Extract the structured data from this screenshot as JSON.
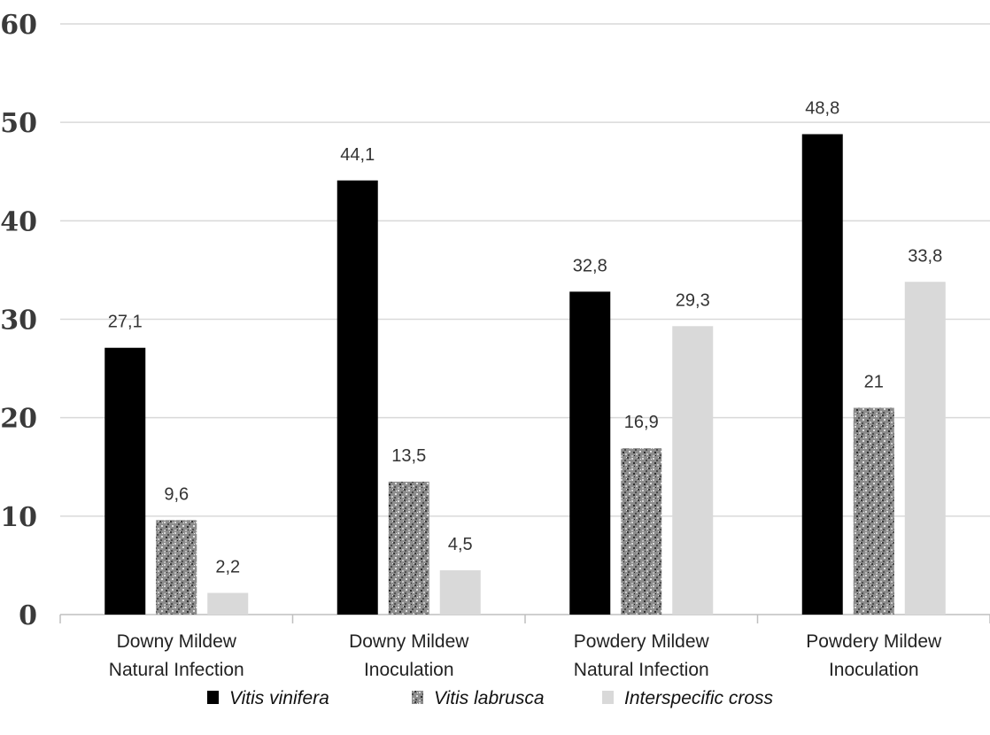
{
  "chart_data": {
    "type": "bar",
    "categories": [
      [
        "Downy Mildew",
        "Natural Infection"
      ],
      [
        "Downy Mildew",
        "Inoculation"
      ],
      [
        "Powdery Mildew",
        "Natural Infection"
      ],
      [
        "Powdery Mildew",
        "Inoculation"
      ]
    ],
    "series": [
      {
        "name": "Vitis vinifera",
        "values": [
          27.1,
          44.1,
          32.8,
          48.8
        ],
        "labels": [
          "27,1",
          "44,1",
          "32,8",
          "48,8"
        ],
        "color": "#000000",
        "pattern": "solid"
      },
      {
        "name": "Vitis labrusca",
        "values": [
          9.6,
          13.5,
          16.9,
          21
        ],
        "labels": [
          "9,6",
          "13,5",
          "16,9",
          "21"
        ],
        "color": "#8a8a8a",
        "pattern": "speckle"
      },
      {
        "name": "Interspecific cross",
        "values": [
          2.2,
          4.5,
          29.3,
          33.8
        ],
        "labels": [
          "2,2",
          "4,5",
          "29,3",
          "33,8"
        ],
        "color": "#d9d9d9",
        "pattern": "solid"
      }
    ],
    "y_ticks": [
      "0",
      "10",
      "20",
      "30",
      "40",
      "50",
      "60"
    ],
    "ylim": [
      0,
      60
    ],
    "grid": true,
    "legend_position": "bottom"
  }
}
